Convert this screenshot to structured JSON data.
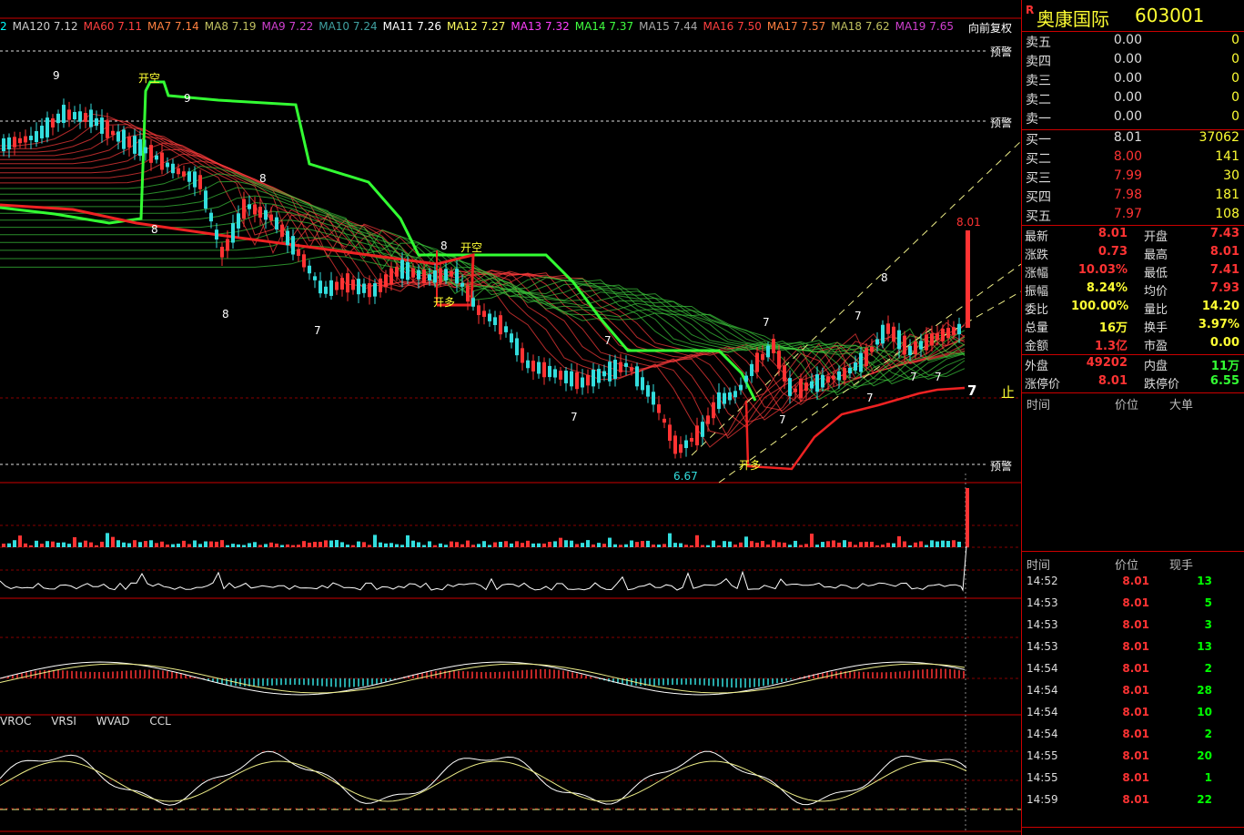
{
  "ma_legend": [
    {
      "label": "2",
      "color": "#00ffff"
    },
    {
      "label": "MA120 7.12",
      "color": "#cccccc"
    },
    {
      "label": "MA60 7.11",
      "color": "#ff4040"
    },
    {
      "label": "MA7 7.14",
      "color": "#ff8040"
    },
    {
      "label": "MA8 7.19",
      "color": "#c0c060"
    },
    {
      "label": "MA9 7.22",
      "color": "#d040d0"
    },
    {
      "label": "MA10 7.24",
      "color": "#40a0a0"
    },
    {
      "label": "MA11 7.26",
      "color": "#ffffff"
    },
    {
      "label": "MA12 7.27",
      "color": "#ffff60"
    },
    {
      "label": "MA13 7.32",
      "color": "#ff40ff"
    },
    {
      "label": "MA14 7.37",
      "color": "#40ff40"
    },
    {
      "label": "MA15 7.44",
      "color": "#aaaaaa"
    },
    {
      "label": "MA16 7.50",
      "color": "#ff4040"
    },
    {
      "label": "MA17 7.57",
      "color": "#ff8040"
    },
    {
      "label": "MA18 7.62",
      "color": "#c0c060"
    },
    {
      "label": "MA19 7.65",
      "color": "#d040d0"
    }
  ],
  "adjust_mode": "向前复权",
  "chart_labels": {
    "warn": "预警",
    "open_short": "开空",
    "open_long": "开多",
    "stop": "止",
    "last_price_tag": "8.01",
    "low_tag": "6.67",
    "marker_7": "7",
    "marker_8": "8",
    "marker_9": "9"
  },
  "indicator_tabs": [
    "VROC",
    "VRSI",
    "WVAD",
    "CCL"
  ],
  "stock": {
    "flag": "R",
    "name": "奥康国际",
    "code": "603001"
  },
  "order_book": {
    "asks": [
      {
        "label": "卖五",
        "price": "0.00",
        "vol": "0"
      },
      {
        "label": "卖四",
        "price": "0.00",
        "vol": "0"
      },
      {
        "label": "卖三",
        "price": "0.00",
        "vol": "0"
      },
      {
        "label": "卖二",
        "price": "0.00",
        "vol": "0"
      },
      {
        "label": "卖一",
        "price": "0.00",
        "vol": "0"
      }
    ],
    "bids": [
      {
        "label": "买一",
        "price": "8.01",
        "vol": "37062"
      },
      {
        "label": "买二",
        "price": "8.00",
        "vol": "141"
      },
      {
        "label": "买三",
        "price": "7.99",
        "vol": "30"
      },
      {
        "label": "买四",
        "price": "7.98",
        "vol": "181"
      },
      {
        "label": "买五",
        "price": "7.97",
        "vol": "108"
      }
    ]
  },
  "quote": [
    {
      "l1": "最新",
      "v1": "8.01",
      "c1": "#ff3333",
      "l2": "开盘",
      "v2": "7.43",
      "c2": "#ff3333"
    },
    {
      "l1": "涨跌",
      "v1": "0.73",
      "c1": "#ff3333",
      "l2": "最高",
      "v2": "8.01",
      "c2": "#ff3333"
    },
    {
      "l1": "涨幅",
      "v1": "10.03%",
      "c1": "#ff3333",
      "l2": "最低",
      "v2": "7.41",
      "c2": "#ff3333"
    },
    {
      "l1": "振幅",
      "v1": "8.24%",
      "c1": "#ffff33",
      "l2": "均价",
      "v2": "7.93",
      "c2": "#ff3333"
    },
    {
      "l1": "委比",
      "v1": "100.00%",
      "c1": "#ffff33",
      "l2": "量比",
      "v2": "14.20",
      "c2": "#ffff33"
    },
    {
      "l1": "总量",
      "v1": "16万",
      "c1": "#ffff33",
      "l2": "换手",
      "v2": "3.97%",
      "c2": "#ffff33"
    },
    {
      "l1": "金额",
      "v1": "1.3亿",
      "c1": "#ff3333",
      "l2": "市盈",
      "v2": "0.00",
      "c2": "#ffff33"
    },
    {
      "l1": "外盘",
      "v1": "49202",
      "c1": "#ff3333",
      "l2": "内盘",
      "v2": "11万",
      "c2": "#33ff33"
    },
    {
      "l1": "涨停价",
      "v1": "8.01",
      "c1": "#ff3333",
      "l2": "跌停价",
      "v2": "6.55",
      "c2": "#33ff33"
    }
  ],
  "big_order_header": {
    "time": "时间",
    "price": "价位",
    "big": "大单"
  },
  "tick_header": {
    "time": "时间",
    "price": "价位",
    "vol": "现手"
  },
  "ticks": [
    {
      "time": "14:52",
      "price": "8.01",
      "vol": "13"
    },
    {
      "time": "14:53",
      "price": "8.01",
      "vol": "5"
    },
    {
      "time": "14:53",
      "price": "8.01",
      "vol": "3"
    },
    {
      "time": "14:53",
      "price": "8.01",
      "vol": "13"
    },
    {
      "time": "14:54",
      "price": "8.01",
      "vol": "2"
    },
    {
      "time": "14:54",
      "price": "8.01",
      "vol": "28"
    },
    {
      "time": "14:54",
      "price": "8.01",
      "vol": "10"
    },
    {
      "time": "14:54",
      "price": "8.01",
      "vol": "2"
    },
    {
      "time": "14:55",
      "price": "8.01",
      "vol": "20"
    },
    {
      "time": "14:55",
      "price": "8.01",
      "vol": "1"
    },
    {
      "time": "14:59",
      "price": "8.01",
      "vol": "22"
    }
  ],
  "colors": {
    "up": "#ff3333",
    "down": "#33dddd",
    "panel_border": "#cc0000",
    "trail": "#33ff33"
  }
}
